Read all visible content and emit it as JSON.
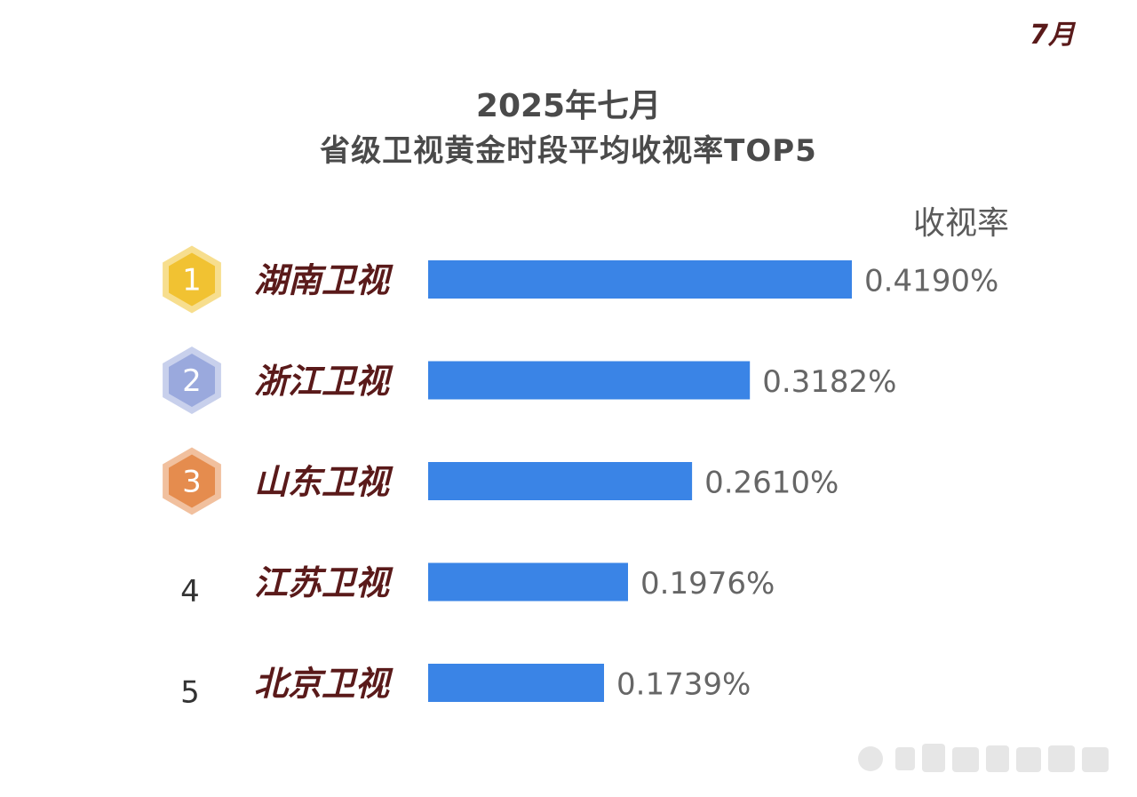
{
  "month_tag": "7月",
  "title_line1": "2025年七月",
  "title_line2": "省级卫视黄金时段平均收视率TOP5",
  "column_header": "收视率",
  "chart_data": {
    "type": "bar",
    "orientation": "horizontal",
    "categories": [
      "湖南卫视",
      "浙江卫视",
      "山东卫视",
      "江苏卫视",
      "北京卫视"
    ],
    "ranks": [
      "1",
      "2",
      "3",
      "4",
      "5"
    ],
    "values": [
      0.419,
      0.3182,
      0.261,
      0.1976,
      0.1739
    ],
    "value_labels": [
      "0.4190%",
      "0.3182%",
      "0.2610%",
      "0.1976%",
      "0.1739%"
    ],
    "unit": "%",
    "bar_color": "#3a84e6",
    "category_color": "#5a1a1a",
    "medal_colors": [
      "#f1c232",
      "#9aa9dd",
      "#e58c4e"
    ],
    "xlim": [
      0,
      0.419
    ],
    "grid": false,
    "legend": "none"
  }
}
